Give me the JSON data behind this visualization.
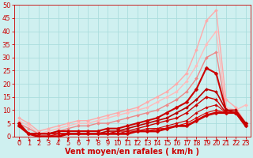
{
  "title": "",
  "xlabel": "Vent moyen/en rafales ( km/h )",
  "bg_color": "#cff0f0",
  "grid_color": "#aadddd",
  "xlim": [
    -0.5,
    23.5
  ],
  "ylim": [
    0,
    50
  ],
  "yticks": [
    0,
    5,
    10,
    15,
    20,
    25,
    30,
    35,
    40,
    45,
    50
  ],
  "xticks": [
    0,
    1,
    2,
    3,
    4,
    5,
    6,
    7,
    8,
    9,
    10,
    11,
    12,
    13,
    14,
    15,
    16,
    17,
    18,
    19,
    20,
    21,
    22,
    23
  ],
  "lines": [
    {
      "x": [
        0,
        1,
        2,
        3,
        4,
        5,
        6,
        7,
        8,
        9,
        10,
        11,
        12,
        13,
        14,
        15,
        16,
        17,
        18,
        19,
        20,
        21,
        22,
        23
      ],
      "y": [
        7,
        5,
        2,
        3,
        4,
        5,
        6,
        6,
        7,
        8,
        9,
        10,
        11,
        13,
        15,
        17,
        20,
        24,
        33,
        44,
        48,
        14,
        11,
        5
      ],
      "color": "#ffaaaa",
      "lw": 1.0,
      "marker": "D",
      "ms": 2.0
    },
    {
      "x": [
        0,
        1,
        2,
        3,
        4,
        5,
        6,
        7,
        8,
        9,
        10,
        11,
        12,
        13,
        14,
        15,
        16,
        17,
        18,
        19,
        20,
        21,
        22,
        23
      ],
      "y": [
        6,
        4,
        1,
        2,
        3,
        4,
        5,
        5,
        6,
        7,
        8,
        9,
        10,
        11,
        13,
        15,
        17,
        21,
        27,
        35,
        40,
        11,
        10,
        12
      ],
      "color": "#ffbbbb",
      "lw": 1.0,
      "marker": "D",
      "ms": 2.0
    },
    {
      "x": [
        0,
        1,
        2,
        3,
        4,
        5,
        6,
        7,
        8,
        9,
        10,
        11,
        12,
        13,
        14,
        15,
        16,
        17,
        18,
        19,
        20,
        21,
        22,
        23
      ],
      "y": [
        5,
        3,
        1,
        1,
        2,
        3,
        4,
        4,
        5,
        5,
        6,
        7,
        8,
        9,
        10,
        12,
        14,
        17,
        22,
        30,
        32,
        10,
        9,
        5
      ],
      "color": "#ee8888",
      "lw": 1.0,
      "marker": "D",
      "ms": 2.0
    },
    {
      "x": [
        0,
        1,
        2,
        3,
        4,
        5,
        6,
        7,
        8,
        9,
        10,
        11,
        12,
        13,
        14,
        15,
        16,
        17,
        18,
        19,
        20,
        21,
        22,
        23
      ],
      "y": [
        5,
        1,
        1,
        1,
        2,
        2,
        2,
        2,
        2,
        3,
        3,
        4,
        5,
        6,
        7,
        9,
        11,
        13,
        18,
        26,
        24,
        10,
        9,
        5
      ],
      "color": "#cc0000",
      "lw": 1.5,
      "marker": "D",
      "ms": 2.5
    },
    {
      "x": [
        0,
        1,
        2,
        3,
        4,
        5,
        6,
        7,
        8,
        9,
        10,
        11,
        12,
        13,
        14,
        15,
        16,
        17,
        18,
        19,
        20,
        21,
        22,
        23
      ],
      "y": [
        5,
        1,
        1,
        1,
        1,
        1,
        1,
        1,
        1,
        2,
        2,
        3,
        4,
        5,
        6,
        7,
        9,
        11,
        14,
        18,
        17,
        10,
        10,
        5
      ],
      "color": "#bb0000",
      "lw": 1.2,
      "marker": "D",
      "ms": 2.0
    },
    {
      "x": [
        0,
        1,
        2,
        3,
        4,
        5,
        6,
        7,
        8,
        9,
        10,
        11,
        12,
        13,
        14,
        15,
        16,
        17,
        18,
        19,
        20,
        21,
        22,
        23
      ],
      "y": [
        5,
        1,
        1,
        1,
        1,
        1,
        1,
        1,
        1,
        1,
        2,
        2,
        3,
        4,
        5,
        6,
        7,
        9,
        12,
        15,
        14,
        9,
        9,
        4
      ],
      "color": "#cc0000",
      "lw": 1.0,
      "marker": "D",
      "ms": 2.0
    },
    {
      "x": [
        0,
        1,
        2,
        3,
        4,
        5,
        6,
        7,
        8,
        9,
        10,
        11,
        12,
        13,
        14,
        15,
        16,
        17,
        18,
        19,
        20,
        21,
        22,
        23
      ],
      "y": [
        4,
        1,
        1,
        1,
        1,
        1,
        1,
        1,
        1,
        1,
        1,
        2,
        2,
        3,
        3,
        4,
        5,
        6,
        9,
        11,
        12,
        9,
        9,
        4
      ],
      "color": "#cc0000",
      "lw": 0.8,
      "marker": "D",
      "ms": 1.8
    },
    {
      "x": [
        0,
        1,
        2,
        3,
        4,
        5,
        6,
        7,
        8,
        9,
        10,
        11,
        12,
        13,
        14,
        15,
        16,
        17,
        18,
        19,
        20,
        21,
        22,
        23
      ],
      "y": [
        4,
        1,
        0,
        0,
        1,
        1,
        1,
        1,
        1,
        1,
        1,
        1,
        2,
        2,
        3,
        3,
        4,
        5,
        7,
        9,
        10,
        9,
        9,
        4
      ],
      "color": "#dd0000",
      "lw": 0.8,
      "marker": "D",
      "ms": 1.8
    },
    {
      "x": [
        0,
        1,
        2,
        3,
        4,
        5,
        6,
        7,
        8,
        9,
        10,
        11,
        12,
        13,
        14,
        15,
        16,
        17,
        18,
        19,
        20,
        21,
        22,
        23
      ],
      "y": [
        4,
        1,
        0,
        0,
        0,
        1,
        1,
        1,
        1,
        1,
        1,
        1,
        2,
        2,
        2,
        3,
        4,
        4,
        6,
        8,
        9,
        9,
        9,
        4
      ],
      "color": "#cc0000",
      "lw": 2.0,
      "marker": "D",
      "ms": 2.5
    }
  ],
  "xlabel_color": "#cc0000",
  "xlabel_fontsize": 7,
  "tick_color": "#cc0000",
  "tick_fontsize": 6,
  "ylabel_color": "#cc0000",
  "ylabel_fontsize": 6
}
